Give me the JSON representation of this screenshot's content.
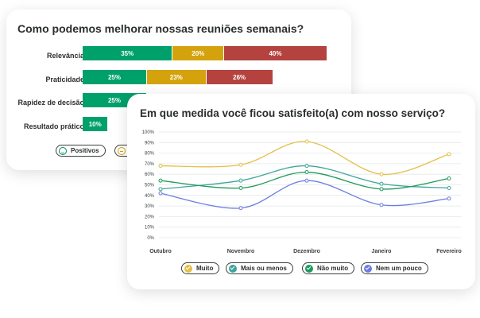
{
  "chart_data": [
    {
      "type": "bar",
      "stacked": true,
      "orientation": "horizontal",
      "title": "Como podemos melhorar nossas reuniões semanais?",
      "categories": [
        "Relevância",
        "Praticidade",
        "Rapidez de decisão",
        "Resultado prático"
      ],
      "series": [
        {
          "name": "Positivos",
          "color": "#00a06b",
          "values": [
            35,
            25,
            25,
            10
          ],
          "labels": [
            "35%",
            "25%",
            "25%",
            "10%"
          ]
        },
        {
          "color": "#d4a20c",
          "values": [
            20,
            23,
            null,
            null
          ],
          "labels": [
            "20%",
            "23%",
            "",
            ""
          ]
        },
        {
          "color": "#b4423f",
          "values": [
            40,
            26,
            null,
            null
          ],
          "labels": [
            "40%",
            "26%",
            "",
            ""
          ]
        }
      ],
      "legend": {
        "position": "bottom-left",
        "items": [
          "Positivos"
        ]
      }
    },
    {
      "type": "line",
      "title": "Em que medida você ficou satisfeito(a) com nosso serviço?",
      "categories": [
        "Outubro",
        "Novembro",
        "Dezembro",
        "Janeiro",
        "Fevereiro"
      ],
      "ylim": [
        0,
        100
      ],
      "yticks": [
        "0%",
        "10%",
        "20%",
        "30%",
        "40%",
        "50%",
        "60%",
        "70%",
        "80%",
        "90%",
        "100%"
      ],
      "grid": true,
      "series": [
        {
          "name": "Muito",
          "color": "#e3c04a",
          "values": [
            68,
            69,
            91,
            60,
            79
          ]
        },
        {
          "name": "Mais ou menos",
          "color": "#3fa59b",
          "values": [
            46,
            54,
            68,
            51,
            47
          ]
        },
        {
          "name": "Não muito",
          "color": "#1e9a5c",
          "values": [
            54,
            47,
            62,
            46,
            56
          ]
        },
        {
          "name": "Nem um pouco",
          "color": "#6b7de0",
          "values": [
            42,
            28,
            54,
            31,
            37
          ]
        }
      ],
      "legend": {
        "position": "bottom"
      }
    }
  ]
}
